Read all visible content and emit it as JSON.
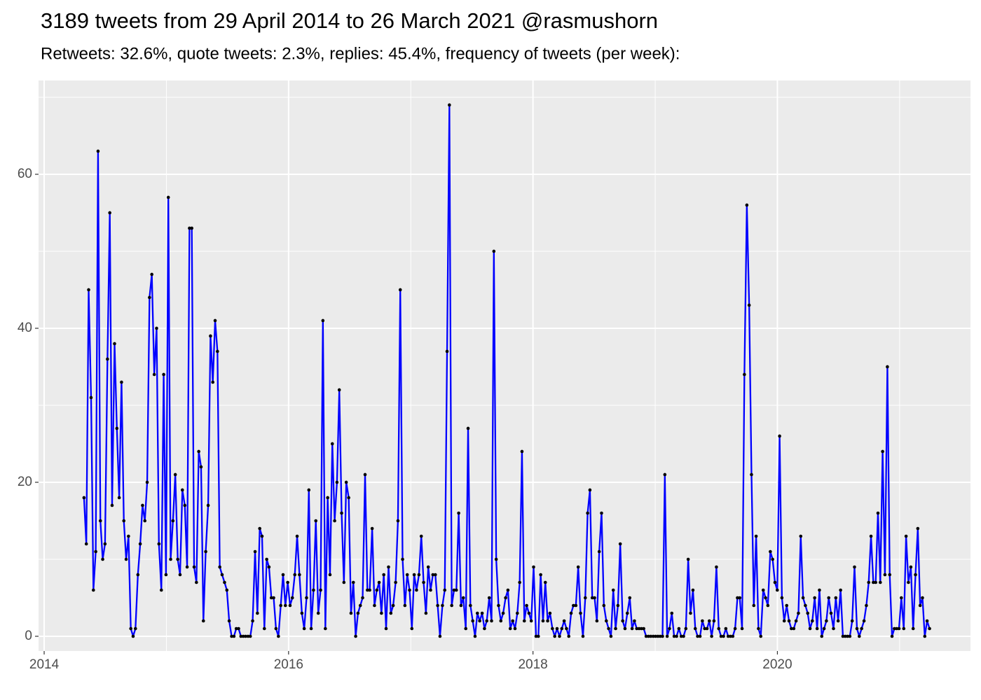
{
  "chart_data": {
    "type": "line",
    "title": "3189 tweets from 29 April 2014 to 26 March 2021 @rasmushorn",
    "subtitle": "Retweets: 32.6%, quote tweets: 2.3%, replies: 45.4%, frequency of tweets (per week):",
    "x": [
      2014.326,
      2014.345,
      2014.364,
      2014.384,
      2014.403,
      2014.422,
      2014.441,
      2014.46,
      2014.479,
      2014.498,
      2014.518,
      2014.537,
      2014.556,
      2014.576,
      2014.595,
      2014.614,
      2014.633,
      2014.652,
      2014.671,
      2014.69,
      2014.709,
      2014.728,
      2014.747,
      2014.767,
      2014.786,
      2014.805,
      2014.824,
      2014.843,
      2014.862,
      2014.881,
      2014.901,
      2014.92,
      2014.939,
      2014.959,
      2014.978,
      2014.997,
      2015.016,
      2015.035,
      2015.054,
      2015.073,
      2015.093,
      2015.112,
      2015.131,
      2015.151,
      2015.17,
      2015.189,
      2015.208,
      2015.227,
      2015.246,
      2015.265,
      2015.284,
      2015.303,
      2015.322,
      2015.342,
      2015.361,
      2015.38,
      2015.399,
      2015.418,
      2015.437,
      2015.456,
      2015.476,
      2015.495,
      2015.514,
      2015.534,
      2015.553,
      2015.572,
      2015.591,
      2015.61,
      2015.629,
      2015.648,
      2015.668,
      2015.687,
      2015.706,
      2015.726,
      2015.745,
      2015.764,
      2015.783,
      2015.802,
      2015.821,
      2015.84,
      2015.859,
      2015.878,
      2015.897,
      2015.917,
      2015.936,
      2015.955,
      2015.974,
      2015.993,
      2016.012,
      2016.031,
      2016.051,
      2016.07,
      2016.089,
      2016.109,
      2016.128,
      2016.147,
      2016.166,
      2016.185,
      2016.204,
      2016.223,
      2016.243,
      2016.262,
      2016.281,
      2016.301,
      2016.32,
      2016.339,
      2016.358,
      2016.377,
      2016.396,
      2016.415,
      2016.434,
      2016.453,
      2016.472,
      2016.492,
      2016.511,
      2016.53,
      2016.549,
      2016.568,
      2016.587,
      2016.606,
      2016.626,
      2016.645,
      2016.664,
      2016.684,
      2016.703,
      2016.722,
      2016.741,
      2016.76,
      2016.779,
      2016.798,
      2016.818,
      2016.837,
      2016.856,
      2016.876,
      2016.895,
      2016.914,
      2016.933,
      2016.952,
      2016.971,
      2016.99,
      2017.009,
      2017.028,
      2017.047,
      2017.067,
      2017.086,
      2017.105,
      2017.124,
      2017.143,
      2017.162,
      2017.181,
      2017.201,
      2017.22,
      2017.239,
      2017.259,
      2017.278,
      2017.297,
      2017.316,
      2017.335,
      2017.354,
      2017.373,
      2017.392,
      2017.411,
      2017.43,
      2017.45,
      2017.469,
      2017.488,
      2017.507,
      2017.526,
      2017.545,
      2017.564,
      2017.584,
      2017.603,
      2017.622,
      2017.642,
      2017.661,
      2017.68,
      2017.699,
      2017.718,
      2017.737,
      2017.756,
      2017.776,
      2017.795,
      2017.814,
      2017.834,
      2017.853,
      2017.872,
      2017.891,
      2017.91,
      2017.929,
      2017.948,
      2017.967,
      2017.986,
      2018.005,
      2018.025,
      2018.044,
      2018.063,
      2018.082,
      2018.101,
      2018.12,
      2018.139,
      2018.159,
      2018.178,
      2018.197,
      2018.217,
      2018.236,
      2018.255,
      2018.274,
      2018.293,
      2018.312,
      2018.331,
      2018.351,
      2018.37,
      2018.389,
      2018.409,
      2018.428,
      2018.447,
      2018.466,
      2018.485,
      2018.504,
      2018.523,
      2018.542,
      2018.561,
      2018.58,
      2018.6,
      2018.619,
      2018.638,
      2018.657,
      2018.676,
      2018.695,
      2018.714,
      2018.734,
      2018.753,
      2018.772,
      2018.792,
      2018.811,
      2018.83,
      2018.849,
      2018.868,
      2018.887,
      2018.906,
      2018.926,
      2018.945,
      2018.964,
      2018.984,
      2019.003,
      2019.022,
      2019.041,
      2019.06,
      2019.079,
      2019.098,
      2019.117,
      2019.136,
      2019.155,
      2019.175,
      2019.194,
      2019.213,
      2019.232,
      2019.251,
      2019.27,
      2019.289,
      2019.309,
      2019.328,
      2019.347,
      2019.367,
      2019.386,
      2019.405,
      2019.424,
      2019.443,
      2019.462,
      2019.481,
      2019.501,
      2019.52,
      2019.539,
      2019.559,
      2019.578,
      2019.597,
      2019.616,
      2019.635,
      2019.654,
      2019.673,
      2019.692,
      2019.711,
      2019.73,
      2019.75,
      2019.769,
      2019.788,
      2019.807,
      2019.826,
      2019.845,
      2019.864,
      2019.884,
      2019.903,
      2019.922,
      2019.942,
      2019.961,
      2019.98,
      2019.999,
      2020.018,
      2020.037,
      2020.056,
      2020.076,
      2020.095,
      2020.114,
      2020.134,
      2020.153,
      2020.172,
      2020.191,
      2020.21,
      2020.229,
      2020.248,
      2020.267,
      2020.286,
      2020.305,
      2020.325,
      2020.344,
      2020.363,
      2020.382,
      2020.401,
      2020.42,
      2020.439,
      2020.459,
      2020.478,
      2020.497,
      2020.517,
      2020.536,
      2020.555,
      2020.574,
      2020.593,
      2020.612,
      2020.631,
      2020.651,
      2020.67,
      2020.689,
      2020.709,
      2020.728,
      2020.747,
      2020.766,
      2020.785,
      2020.804,
      2020.823,
      2020.842,
      2020.861,
      2020.88,
      2020.9,
      2020.919,
      2020.938,
      2020.957,
      2020.976,
      2020.995,
      2021.014,
      2021.034,
      2021.053,
      2021.072,
      2021.092,
      2021.111,
      2021.13,
      2021.149,
      2021.168,
      2021.187,
      2021.206,
      2021.225,
      2021.245
    ],
    "series": [
      {
        "color": "#0000ff",
        "point_color": "#000000",
        "values": [
          18,
          12,
          45,
          31,
          6,
          11,
          63,
          15,
          10,
          12,
          36,
          55,
          17,
          38,
          27,
          18,
          33,
          15,
          10,
          13,
          1,
          0,
          1,
          8,
          12,
          17,
          15,
          20,
          44,
          47,
          34,
          40,
          12,
          6,
          34,
          8,
          57,
          10,
          15,
          21,
          10,
          8,
          19,
          17,
          9,
          53,
          53,
          9,
          7,
          24,
          22,
          2,
          11,
          17,
          39,
          33,
          41,
          37,
          9,
          8,
          7,
          6,
          2,
          0,
          0,
          1,
          1,
          0,
          0,
          0,
          0,
          0,
          2,
          11,
          3,
          14,
          13,
          1,
          10,
          9,
          5,
          5,
          1,
          0,
          4,
          8,
          4,
          7,
          4,
          5,
          8,
          13,
          8,
          3,
          1,
          5,
          19,
          1,
          6,
          15,
          3,
          6,
          41,
          1,
          18,
          8,
          25,
          15,
          20,
          32,
          16,
          7,
          20,
          18,
          3,
          7,
          0,
          3,
          4,
          5,
          21,
          6,
          6,
          14,
          4,
          6,
          7,
          3,
          8,
          1,
          9,
          3,
          4,
          7,
          15,
          45,
          10,
          4,
          8,
          6,
          1,
          8,
          6,
          8,
          13,
          7,
          3,
          9,
          6,
          8,
          8,
          4,
          0,
          4,
          6,
          37,
          69,
          4,
          6,
          6,
          16,
          4,
          5,
          1,
          27,
          4,
          2,
          0,
          3,
          2,
          3,
          1,
          2,
          5,
          2,
          50,
          10,
          4,
          2,
          3,
          5,
          6,
          1,
          2,
          1,
          3,
          7,
          24,
          2,
          4,
          3,
          2,
          9,
          0,
          0,
          8,
          2,
          7,
          2,
          3,
          1,
          0,
          1,
          0,
          1,
          2,
          1,
          0,
          3,
          4,
          4,
          9,
          3,
          0,
          5,
          16,
          19,
          5,
          5,
          2,
          11,
          16,
          4,
          2,
          1,
          0,
          6,
          1,
          4,
          12,
          2,
          1,
          3,
          5,
          1,
          2,
          1,
          1,
          1,
          1,
          0,
          0,
          0,
          0,
          0,
          0,
          0,
          0,
          21,
          0,
          1,
          3,
          0,
          0,
          1,
          0,
          0,
          1,
          10,
          3,
          6,
          1,
          0,
          0,
          2,
          1,
          1,
          2,
          0,
          2,
          9,
          1,
          0,
          0,
          1,
          0,
          0,
          0,
          1,
          5,
          5,
          1,
          34,
          56,
          43,
          21,
          4,
          13,
          1,
          0,
          6,
          5,
          4,
          11,
          10,
          7,
          6,
          26,
          5,
          2,
          4,
          2,
          1,
          1,
          2,
          3,
          13,
          5,
          4,
          3,
          1,
          2,
          5,
          1,
          6,
          0,
          1,
          2,
          5,
          3,
          1,
          5,
          2,
          6,
          0,
          0,
          0,
          0,
          2,
          9,
          1,
          0,
          1,
          2,
          4,
          7,
          13,
          7,
          7,
          16,
          7,
          24,
          8,
          35,
          8,
          0,
          1,
          1,
          1,
          5,
          1,
          13,
          7,
          9,
          1,
          8,
          14,
          4,
          5,
          0,
          2,
          1
        ]
      }
    ],
    "xlim": [
      2013.954,
      2021.58
    ],
    "ylim": [
      -1.91,
      72.18
    ],
    "xticks": [
      2014,
      2016,
      2018,
      2020
    ],
    "yticks": [
      0,
      20,
      40,
      60
    ],
    "grid": true,
    "panel_background": "#ebebeb",
    "grid_color": "#ffffff"
  }
}
